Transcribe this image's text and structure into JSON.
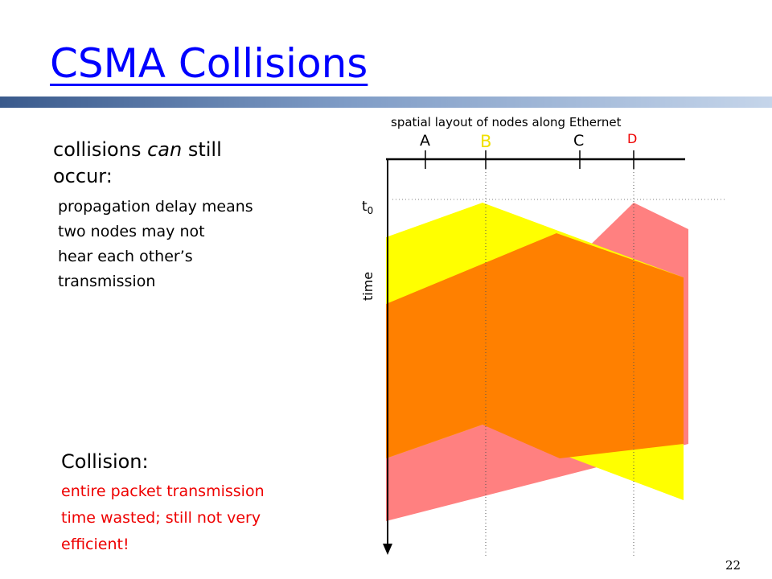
{
  "slide": {
    "title": "CSMA Collisions",
    "intro": {
      "heading_prefix": "collisions ",
      "heading_emphasis": "can",
      "heading_suffix": " still",
      "heading_line2": "occur:",
      "lines": [
        "propagation delay means",
        "two nodes may not",
        "hear each other’s",
        "transmission"
      ]
    },
    "collision_note": {
      "heading": "Collision:",
      "lines": [
        "entire packet transmission",
        "time wasted; still not very",
        "efficient!"
      ]
    },
    "page_number": "22"
  },
  "diagram": {
    "spatial_caption": "spatial layout of nodes along Ethernet",
    "nodes": [
      {
        "label": "A",
        "color": "#000000"
      },
      {
        "label": "B",
        "color": "#f0e000"
      },
      {
        "label": "C",
        "color": "#000000"
      },
      {
        "label": "D",
        "color": "#ee0000"
      }
    ],
    "t0_label": "t",
    "t0_subscript": "0",
    "time_label": "time",
    "colors": {
      "node_b_transmission": "#ffff00",
      "node_d_transmission": "#ff8080",
      "overlap": "#ff8000",
      "title_bar_dark": "#3a5a8c",
      "title_bar_light": "#c5d5ea",
      "title": "#0000ff",
      "note_text": "#ee0000"
    }
  }
}
